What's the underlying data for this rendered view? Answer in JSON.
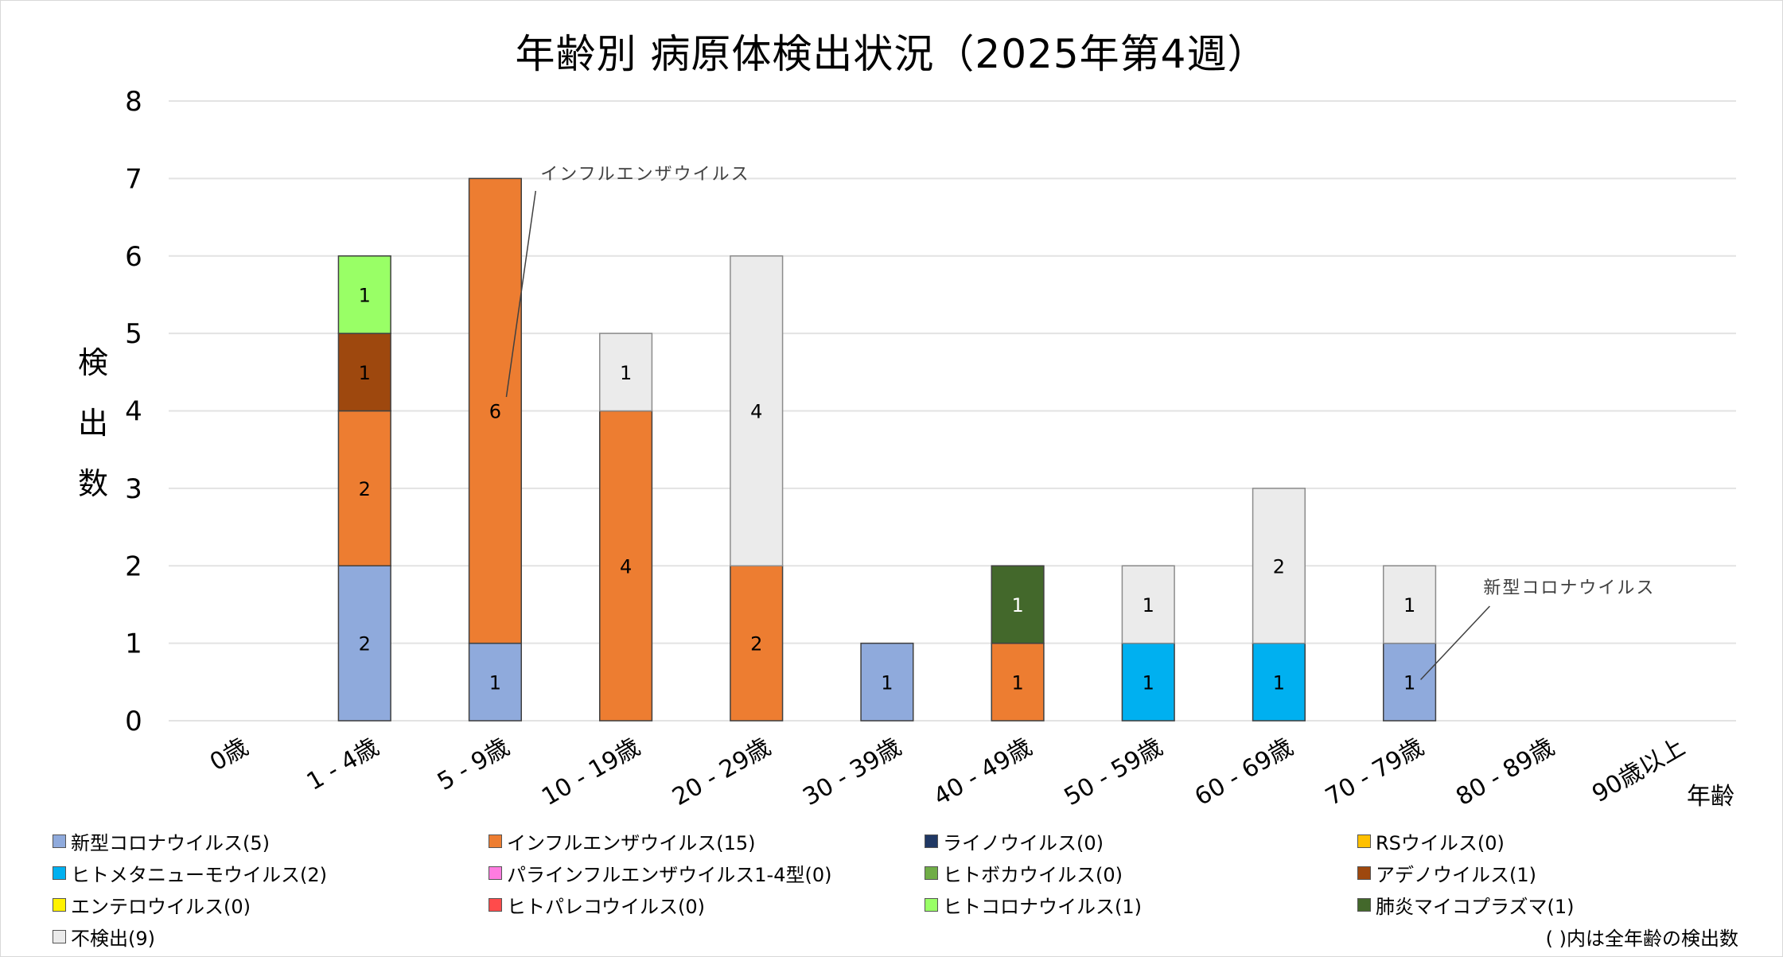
{
  "chart_data": {
    "type": "bar",
    "stacked": true,
    "title": "年齢別 病原体検出状況（2025年第4週）",
    "xlabel": "年齢",
    "ylabel": "検出数",
    "ylim": [
      0,
      8
    ],
    "yticks": [
      0,
      1,
      2,
      3,
      4,
      5,
      6,
      7,
      8
    ],
    "grid": true,
    "legend_position": "bottom",
    "categories": [
      "0歳",
      "1 - 4歳",
      "5 - 9歳",
      "10 - 19歳",
      "20 - 29歳",
      "30 - 39歳",
      "40 - 49歳",
      "50 - 59歳",
      "60 - 69歳",
      "70 - 79歳",
      "80 - 89歳",
      "90歳以上"
    ],
    "series": [
      {
        "name": "新型コロナウイルス",
        "legend_label": "新型コロナウイルス(5)",
        "color": "#8FAADC",
        "values": [
          0,
          2,
          1,
          0,
          0,
          1,
          0,
          0,
          0,
          1,
          0,
          0
        ]
      },
      {
        "name": "インフルエンザウイルス",
        "legend_label": "インフルエンザウイルス(15)",
        "color": "#ED7D31",
        "values": [
          0,
          2,
          6,
          4,
          2,
          0,
          1,
          0,
          0,
          0,
          0,
          0
        ]
      },
      {
        "name": "ライノウイルス",
        "legend_label": "ライノウイルス(0)",
        "color": "#203864",
        "values": [
          0,
          0,
          0,
          0,
          0,
          0,
          0,
          0,
          0,
          0,
          0,
          0
        ]
      },
      {
        "name": "RSウイルス",
        "legend_label": "RSウイルス(0)",
        "color": "#FFC000",
        "values": [
          0,
          0,
          0,
          0,
          0,
          0,
          0,
          0,
          0,
          0,
          0,
          0
        ]
      },
      {
        "name": "ヒトメタニューモウイルス",
        "legend_label": "ヒトメタニューモウイルス(2)",
        "color": "#00B0F0",
        "values": [
          0,
          0,
          0,
          0,
          0,
          0,
          0,
          1,
          1,
          0,
          0,
          0
        ]
      },
      {
        "name": "パラインフルエンザウイルス1-4型",
        "legend_label": "パラインフルエンザウイルス1-4型(0)",
        "color": "#FF7CE0",
        "values": [
          0,
          0,
          0,
          0,
          0,
          0,
          0,
          0,
          0,
          0,
          0,
          0
        ]
      },
      {
        "name": "ヒトボカウイルス",
        "legend_label": "ヒトボカウイルス(0)",
        "color": "#70AD47",
        "values": [
          0,
          0,
          0,
          0,
          0,
          0,
          0,
          0,
          0,
          0,
          0,
          0
        ]
      },
      {
        "name": "アデノウイルス",
        "legend_label": "アデノウイルス(1)",
        "color": "#9E480E",
        "values": [
          0,
          1,
          0,
          0,
          0,
          0,
          0,
          0,
          0,
          0,
          0,
          0
        ]
      },
      {
        "name": "エンテロウイルス",
        "legend_label": "エンテロウイルス(0)",
        "color": "#FFF200",
        "values": [
          0,
          0,
          0,
          0,
          0,
          0,
          0,
          0,
          0,
          0,
          0,
          0
        ]
      },
      {
        "name": "ヒトパレコウイルス",
        "legend_label": "ヒトパレコウイルス(0)",
        "color": "#FF4B4B",
        "values": [
          0,
          0,
          0,
          0,
          0,
          0,
          0,
          0,
          0,
          0,
          0,
          0
        ]
      },
      {
        "name": "ヒトコロナウイルス",
        "legend_label": "ヒトコロナウイルス(1)",
        "color": "#99FF66",
        "values": [
          0,
          1,
          0,
          0,
          0,
          0,
          0,
          0,
          0,
          0,
          0,
          0
        ]
      },
      {
        "name": "肺炎マイコプラズマ",
        "legend_label": "肺炎マイコプラズマ(1)",
        "color": "#43682B",
        "label_color": "#FFFFFF",
        "values": [
          0,
          0,
          0,
          0,
          0,
          0,
          1,
          0,
          0,
          0,
          0,
          0
        ]
      },
      {
        "name": "不検出",
        "legend_label": "不検出(9)",
        "color": "#EBEBEB",
        "values": [
          0,
          0,
          0,
          1,
          4,
          0,
          0,
          1,
          2,
          1,
          0,
          0
        ]
      }
    ],
    "annotations": [
      {
        "text": "インフルエンザウイルス",
        "category": "5 - 9歳",
        "series": "インフルエンザウイルス"
      },
      {
        "text": "新型コロナウイルス",
        "category": "70 - 79歳",
        "series": "新型コロナウイルス"
      }
    ],
    "legend_note": "( )内は全年齢の検出数"
  }
}
